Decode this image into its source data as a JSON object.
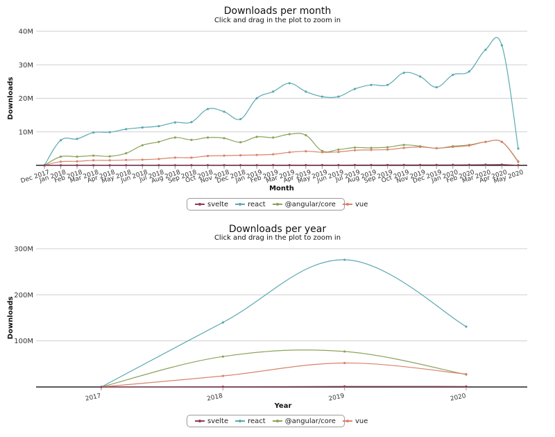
{
  "colors": {
    "svelte": "#8e3a5a",
    "react": "#58a8b0",
    "angular": "#8aa25a",
    "vue": "#d9826a",
    "grid": "#cfcfcf",
    "axis": "#222222"
  },
  "chart_data": [
    {
      "type": "line",
      "title": "Downloads per month",
      "subtitle": "Click and drag in the plot to zoom in",
      "xlabel": "Month",
      "ylabel": "Downloads",
      "ylim": [
        0,
        40000000
      ],
      "yticks": [
        "",
        "10M",
        "20M",
        "30M",
        "40M"
      ],
      "grid": true,
      "legend": "bottom-center",
      "categories": [
        "Dec 2017",
        "Jan 2018",
        "Feb 2018",
        "Mar 2018",
        "Apr 2018",
        "May 2018",
        "Jun 2018",
        "Jul 2018",
        "Aug 2018",
        "Sep 2018",
        "Oct 2018",
        "Nov 2018",
        "Dec 2018",
        "Jan 2019",
        "Feb 2019",
        "Mar 2019",
        "Apr 2019",
        "May 2019",
        "Jun 2019",
        "Jul 2019",
        "Aug 2019",
        "Sep 2019",
        "Oct 2019",
        "Nov 2019",
        "Dec 2019",
        "Jan 2020",
        "Feb 2020",
        "Mar 2020",
        "Apr 2020",
        "May 2020"
      ],
      "series": [
        {
          "name": "svelte",
          "color_key": "svelte",
          "values": [
            0,
            0.03,
            0.03,
            0.03,
            0.03,
            0.04,
            0.04,
            0.04,
            0.04,
            0.05,
            0.05,
            0.06,
            0.06,
            0.06,
            0.07,
            0.08,
            0.09,
            0.09,
            0.09,
            0.1,
            0.11,
            0.12,
            0.13,
            0.14,
            0.14,
            0.15,
            0.17,
            0.2,
            0.22,
            0.05
          ]
        },
        {
          "name": "react",
          "color_key": "react",
          "values": [
            0,
            7.5,
            7.9,
            9.8,
            9.9,
            10.8,
            11.3,
            11.7,
            12.8,
            12.9,
            16.8,
            16.0,
            13.8,
            20.0,
            22.0,
            24.5,
            22.0,
            20.5,
            20.5,
            22.8,
            24.0,
            24.0,
            27.6,
            26.5,
            23.3,
            27.0,
            28.0,
            34.5,
            35.8,
            5.0
          ]
        },
        {
          "name": "@angular/core",
          "color_key": "angular",
          "values": [
            0,
            2.6,
            2.6,
            2.9,
            2.7,
            3.6,
            6.0,
            7.0,
            8.3,
            7.6,
            8.3,
            8.1,
            6.9,
            8.5,
            8.3,
            9.3,
            9.0,
            4.3,
            4.7,
            5.3,
            5.2,
            5.4,
            6.1,
            5.7,
            5.1,
            5.7,
            6.1,
            7.0,
            7.0,
            1.0
          ]
        },
        {
          "name": "vue",
          "color_key": "vue",
          "values": [
            0,
            1.1,
            1.2,
            1.5,
            1.5,
            1.6,
            1.7,
            1.9,
            2.3,
            2.3,
            2.8,
            2.9,
            3.0,
            3.1,
            3.3,
            3.9,
            4.2,
            3.9,
            4.0,
            4.5,
            4.6,
            4.7,
            5.2,
            5.5,
            5.1,
            5.5,
            5.9,
            7.0,
            7.0,
            1.2
          ]
        }
      ],
      "value_unit_multiplier": 1000000
    },
    {
      "type": "line",
      "title": "Downloads per year",
      "subtitle": "Click and drag in the plot to zoom in",
      "xlabel": "Year",
      "ylabel": "Downloads",
      "ylim": [
        0,
        300000000
      ],
      "yticks": [
        "",
        "100M",
        "200M",
        "300M"
      ],
      "grid": true,
      "legend": "bottom-center",
      "categories": [
        "2017",
        "2018",
        "2019",
        "2020"
      ],
      "series": [
        {
          "name": "svelte",
          "color_key": "svelte",
          "values": [
            0,
            0.5,
            1.2,
            1.0
          ]
        },
        {
          "name": "react",
          "color_key": "react",
          "values": [
            0,
            140,
            276,
            131
          ]
        },
        {
          "name": "@angular/core",
          "color_key": "angular",
          "values": [
            0,
            66,
            77,
            27
          ]
        },
        {
          "name": "vue",
          "color_key": "vue",
          "values": [
            0,
            24,
            52,
            28
          ]
        }
      ],
      "value_unit_multiplier": 1000000
    }
  ],
  "legend": {
    "items": [
      "svelte",
      "react",
      "@angular/core",
      "vue"
    ]
  }
}
